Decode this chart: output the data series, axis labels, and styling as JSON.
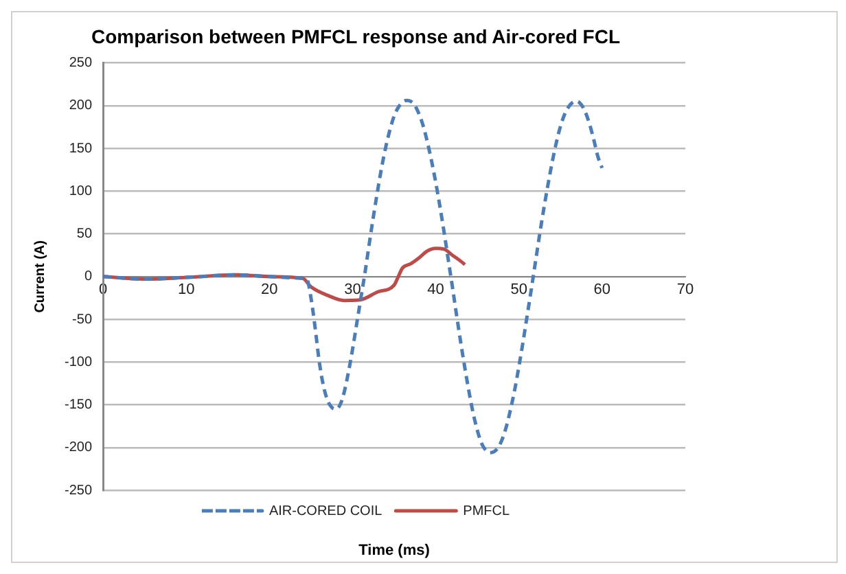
{
  "chart_data": {
    "type": "line",
    "title": "Comparison between PMFCL response and Air-cored FCL",
    "xlabel": "Time (ms)",
    "ylabel": "Current (A)",
    "xlim": [
      0,
      70
    ],
    "xticks": [
      0,
      10,
      20,
      30,
      40,
      50,
      60,
      70
    ],
    "ylim": [
      -250,
      250
    ],
    "yticks": [
      -250,
      -200,
      -150,
      -100,
      -50,
      0,
      50,
      100,
      150,
      200,
      250
    ],
    "grid": "y",
    "legend": "bottom",
    "marker": "none",
    "series": [
      {
        "name": "AIR-CORED COIL",
        "color": "#4a7ebb",
        "line_style": "dashed",
        "x": [
          0,
          5,
          10,
          16,
          20,
          24,
          24.5,
          25,
          25.5,
          26,
          26.5,
          27,
          27.5,
          28,
          28.5,
          29,
          29.5,
          30,
          30.5,
          31,
          31.5,
          32,
          32.5,
          33,
          33.5,
          34,
          34.5,
          35,
          35.5,
          36,
          36.5,
          37,
          37.5,
          38,
          38.5,
          39,
          39.5,
          40,
          40.5,
          41,
          41.5,
          42,
          42.5,
          43,
          43.5,
          44,
          44.5,
          45,
          45.5,
          46,
          46.5,
          47,
          47.5,
          48,
          48.5,
          49,
          49.5,
          50,
          50.5,
          51,
          51.5,
          52,
          52.5,
          53,
          53.5,
          54,
          54.5,
          55,
          55.5,
          56,
          56.5,
          57,
          57.5,
          58,
          58.5,
          59,
          59.5,
          60
        ],
        "values": [
          0,
          -3,
          -1,
          2,
          0,
          -2,
          -3,
          -25,
          -60,
          -100,
          -128,
          -145,
          -153,
          -155,
          -150,
          -135,
          -112,
          -85,
          -55,
          -25,
          5,
          38,
          70,
          100,
          128,
          152,
          172,
          188,
          198,
          204,
          206,
          205,
          200,
          190,
          176,
          157,
          135,
          110,
          82,
          52,
          20,
          -12,
          -45,
          -77,
          -107,
          -135,
          -160,
          -180,
          -195,
          -203,
          -206,
          -205,
          -200,
          -190,
          -175,
          -155,
          -132,
          -105,
          -76,
          -45,
          -14,
          18,
          50,
          80,
          108,
          134,
          157,
          176,
          190,
          199,
          204,
          205,
          201,
          192,
          178,
          160,
          140,
          127
        ]
      },
      {
        "name": "PMFCL",
        "color": "#be4b48",
        "line_style": "solid",
        "x": [
          0,
          5,
          10,
          16,
          20,
          24,
          25,
          27,
          29,
          31,
          33,
          35,
          35.5,
          36,
          37,
          38,
          39,
          40,
          41,
          42,
          43,
          43.5
        ],
        "values": [
          0,
          -3,
          -1,
          2,
          0,
          -2,
          -12,
          -22,
          -28,
          -27,
          -18,
          -10,
          0,
          10,
          15,
          22,
          30,
          33,
          32,
          25,
          18,
          14
        ]
      }
    ]
  }
}
